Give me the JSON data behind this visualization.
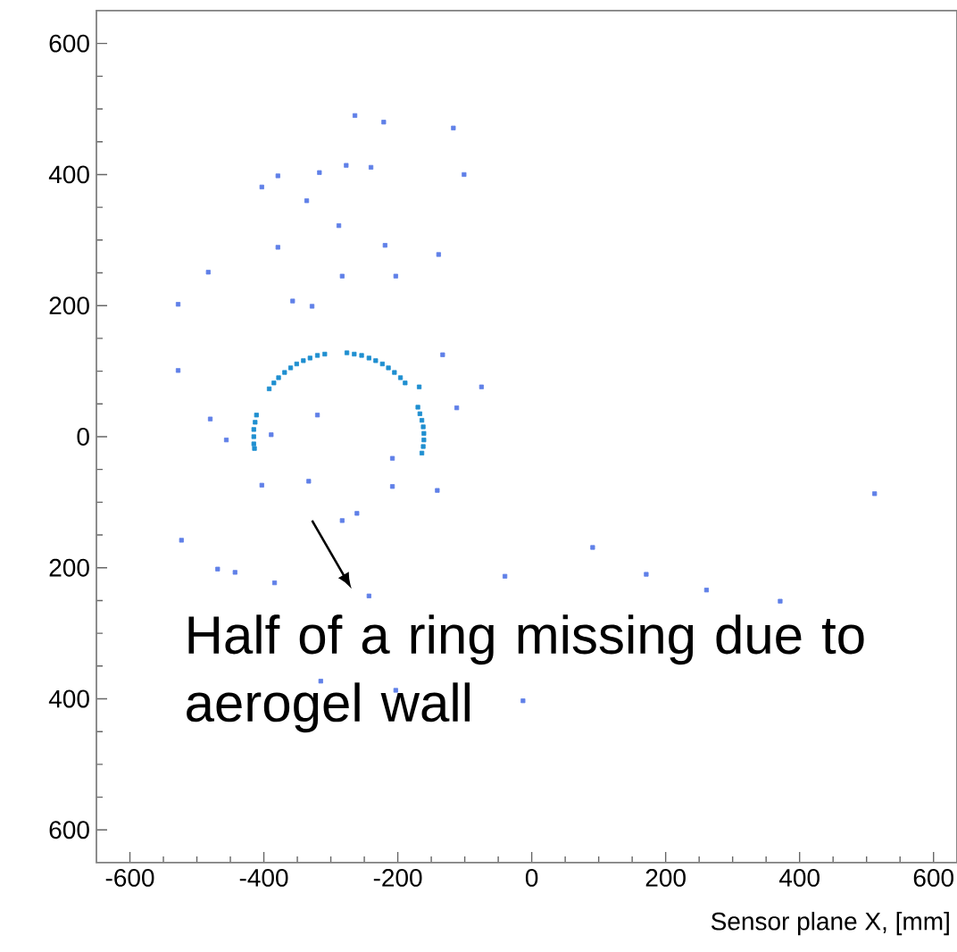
{
  "chart_data": {
    "type": "scatter",
    "xlabel": "Sensor plane X, [mm]",
    "annotations": [
      "Half of a ring missing due to aerogel wall"
    ],
    "xlim": [
      -650,
      635
    ],
    "ylim": [
      -650,
      650
    ],
    "xticks": [
      -600,
      -400,
      -200,
      0,
      200,
      400,
      600
    ],
    "yticks": [
      {
        "value": -600,
        "label": "600"
      },
      {
        "value": -400,
        "label": "400"
      },
      {
        "value": -200,
        "label": "200"
      },
      0,
      200,
      400,
      600
    ],
    "marker": "square",
    "grid": false,
    "series": [
      {
        "color": "#1f8fd0",
        "x": [
          -276,
          -265,
          -254,
          -243,
          -233,
          -223,
          -214,
          -205,
          -196,
          -189,
          -309,
          -320,
          -331,
          -341,
          -351,
          -360,
          -369,
          -378,
          -385,
          -392,
          -411,
          -413,
          -415,
          -415,
          -415,
          -414,
          -170,
          -167,
          -164,
          -162,
          -161,
          -161,
          -162,
          -164,
          -168
        ],
        "values": [
          128,
          126,
          124,
          120,
          116,
          111,
          105,
          98,
          90,
          82,
          126,
          124,
          120,
          116,
          111,
          105,
          98,
          90,
          82,
          73,
          33,
          22,
          11,
          0,
          -11,
          -18,
          45,
          35,
          25,
          15,
          5,
          -5,
          -15,
          -25,
          76
        ]
      },
      {
        "color": "#6080e8",
        "x": [
          -264,
          -221,
          -117,
          -379,
          -317,
          -277,
          -240,
          -101,
          -403,
          -336,
          -288,
          -219,
          -379,
          -139,
          -483,
          -283,
          -203,
          -357,
          -328,
          -528,
          -133,
          -528,
          -480,
          -456,
          -389,
          -320,
          -112,
          -75,
          -208,
          -403,
          -333,
          -261,
          -208,
          -523,
          -469,
          -443,
          -384,
          -243,
          -315,
          -203,
          -141,
          -283,
          512,
          91,
          171,
          261,
          371,
          -40,
          -13
        ],
        "values": [
          490,
          480,
          471,
          398,
          403,
          414,
          411,
          400,
          381,
          360,
          322,
          292,
          289,
          278,
          251,
          245,
          245,
          207,
          199,
          202,
          125,
          101,
          27,
          -5,
          3,
          33,
          44,
          76,
          -33,
          -74,
          -68,
          -117,
          -76,
          -158,
          -202,
          -207,
          -223,
          -243,
          -373,
          -387,
          -82,
          -128,
          -87,
          -169,
          -210,
          -234,
          -251,
          -213,
          -403
        ]
      }
    ]
  }
}
